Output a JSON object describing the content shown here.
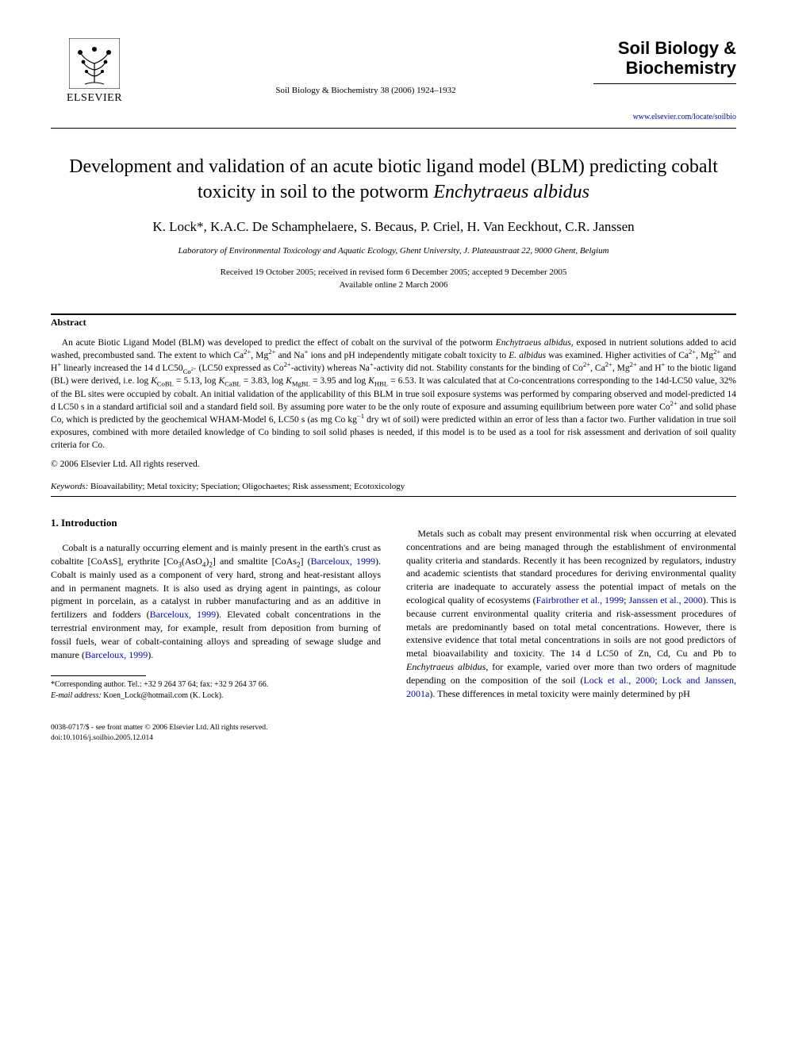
{
  "publisher": {
    "name": "ELSEVIER"
  },
  "journal_ref": "Soil Biology & Biochemistry 38 (2006) 1924–1932",
  "journal_title_block": {
    "line1": "Soil Biology &",
    "line2": "Biochemistry",
    "link": "www.elsevier.com/locate/soilbio"
  },
  "title_part1": "Development and validation of an acute biotic ligand model (BLM) predicting cobalt toxicity in soil to the potworm ",
  "title_italic": "Enchytraeus albidus",
  "authors": "K. Lock*, K.A.C. De Schamphelaere, S. Becaus, P. Criel, H. Van Eeckhout, C.R. Janssen",
  "affiliation": "Laboratory of Environmental Toxicology and Aquatic Ecology, Ghent University, J. Plateaustraat 22, 9000 Ghent, Belgium",
  "dates": {
    "line1": "Received 19 October 2005; received in revised form 6 December 2005; accepted 9 December 2005",
    "line2": "Available online 2 March 2006"
  },
  "abstract": {
    "heading": "Abstract",
    "body_html": "An acute Biotic Ligand Model (BLM) was developed to predict the effect of cobalt on the survival of the potworm <span class=\"italic\">Enchytraeus albidus</span>, exposed in nutrient solutions added to acid washed, precombusted sand. The extent to which Ca<sup>2+</sup>, Mg<sup>2+</sup> and Na<sup>+</sup> ions and pH independently mitigate cobalt toxicity to <span class=\"italic\">E. albidus</span> was examined. Higher activities of Ca<sup>2+</sup>, Mg<sup>2+</sup> and H<sup>+</sup> linearly increased the 14 d LC50<sub>Co<sup>2+</sup></sub> (LC50 expressed as Co<sup>2+</sup>-activity) whereas Na<sup>+</sup>-activity did not. Stability constants for the binding of Co<sup>2+</sup>, Ca<sup>2+</sup>, Mg<sup>2+</sup> and H<sup>+</sup> to the biotic ligand (BL) were derived, i.e. log <span class=\"italic\">K</span><sub>CoBL</sub> = 5.13, log <span class=\"italic\">K</span><sub>CaBL</sub> = 3.83, log <span class=\"italic\">K</span><sub>MgBL</sub> = 3.95 and log <span class=\"italic\">K</span><sub>HBL</sub> = 6.53. It was calculated that at Co-concentrations corresponding to the 14d-LC50 value, 32% of the BL sites were occupied by cobalt. An initial validation of the applicability of this BLM in true soil exposure systems was performed by comparing observed and model-predicted 14 d LC50 s in a standard artificial soil and a standard field soil. By assuming pore water to be the only route of exposure and assuming equilibrium between pore water Co<sup>2+</sup> and solid phase Co, which is predicted by the geochemical WHAM-Model 6, LC50 s (as mg Co kg<sup>−1</sup> dry wt of soil) were predicted within an error of less than a factor two. Further validation in true soil exposures, combined with more detailed knowledge of Co binding to soil solid phases is needed, if this model is to be used as a tool for risk assessment and derivation of soil quality criteria for Co.",
    "copyright": "© 2006 Elsevier Ltd. All rights reserved."
  },
  "keywords": {
    "label": "Keywords:",
    "text": " Bioavailability; Metal toxicity; Speciation; Oligochaetes; Risk assessment; Ecotoxicology"
  },
  "section_heading": "1. Introduction",
  "col_left_html": "<p>Cobalt is a naturally occurring element and is mainly present in the earth's crust as cobaltite [CoAsS], erythrite [Co<sub>3</sub>(AsO<sub>4</sub>)<sub>2</sub>] and smaltite [CoAs<sub>2</sub>] (<span class=\"cite\">Barceloux, 1999</span>). Cobalt is mainly used as a component of very hard, strong and heat-resistant alloys and in permanent magnets. It is also used as drying agent in paintings, as colour pigment in porcelain, as a catalyst in rubber manufacturing and as an additive in fertilizers and fodders (<span class=\"cite\">Barceloux, 1999</span>). Elevated cobalt concentrations in the terrestrial environment may, for example, result from deposition from burning of fossil fuels, wear of cobalt-containing alloys and spreading of sewage sludge and manure (<span class=\"cite\">Barceloux, 1999</span>).</p>",
  "col_right_html": "<p>Metals such as cobalt may present environmental risk when occurring at elevated concentrations and are being managed through the establishment of environmental quality criteria and standards. Recently it has been recognized by regulators, industry and academic scientists that standard procedures for deriving environmental quality criteria are inadequate to accurately assess the potential impact of metals on the ecological quality of ecosystems (<span class=\"cite\">Fairbrother et al., 1999</span>; <span class=\"cite\">Janssen et al., 2000</span>). This is because current environmental quality criteria and risk-assessment procedures of metals are predominantly based on total metal concentrations. However, there is extensive evidence that total metal concentrations in soils are not good predictors of metal bioavailability and toxicity. The 14 d LC50 of Zn, Cd, Cu and Pb to <span class=\"italic\">Enchytraeus albidus</span>, for example, varied over more than two orders of magnitude depending on the composition of the soil (<span class=\"cite\">Lock et al., 2000</span>; <span class=\"cite\">Lock and Janssen, 2001a</span>). These differences in metal toxicity were mainly determined by pH</p>",
  "footnotes": {
    "corresponding": "*Corresponding author. Tel.: +32 9 264 37 64; fax: +32 9 264 37 66.",
    "email_label": "E-mail address:",
    "email_value": " Koen_Lock@hotmail.com (K. Lock)."
  },
  "footer": {
    "line1": "0038-0717/$ - see front matter © 2006 Elsevier Ltd. All rights reserved.",
    "line2": "doi:10.1016/j.soilbio.2005.12.014"
  }
}
